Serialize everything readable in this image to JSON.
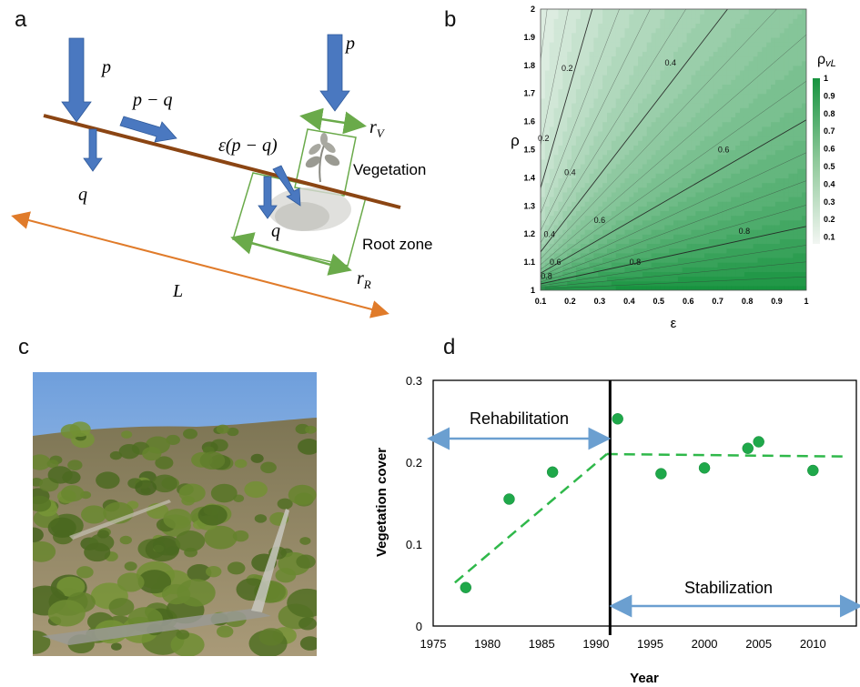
{
  "panels": {
    "a": "a",
    "b": "b",
    "c": "c",
    "d": "d"
  },
  "diagram_a": {
    "labels": {
      "p_left": "p",
      "p_minus_q": "p − q",
      "p_right": "p",
      "q_left": "q",
      "eps_pq": "ε(p − q)",
      "r_v": "r",
      "r_v_sub": "V",
      "vegetation": "Vegetation",
      "q_mid": "q",
      "root_zone": "Root zone",
      "r_r": "r",
      "r_r_sub": "R",
      "L": "L"
    },
    "colors": {
      "arrow": "#4a78c0",
      "slope": "#8b4513",
      "zone": "#6aaa4a",
      "length": "#e07b2a"
    }
  },
  "chart_b": {
    "type": "contour",
    "xlabel": "ε",
    "ylabel": "ρ",
    "xlim": [
      0.1,
      1
    ],
    "ylim": [
      1,
      2
    ],
    "xticks": [
      "0.1",
      "0.2",
      "0.3",
      "0.4",
      "0.5",
      "0.6",
      "0.7",
      "0.8",
      "0.9",
      "1"
    ],
    "yticks": [
      "1",
      "1.1",
      "1.2",
      "1.3",
      "1.4",
      "1.5",
      "1.6",
      "1.7",
      "1.8",
      "1.9",
      "2"
    ],
    "colorbar_title": "ρ",
    "colorbar_title_sub": "vL",
    "colorbar_ticks": [
      "1",
      "0.9",
      "0.8",
      "0.7",
      "0.6",
      "0.5",
      "0.4",
      "0.3",
      "0.2",
      "0.1"
    ],
    "contour_labels": [
      {
        "text": "0.2",
        "e": 0.19,
        "r": 1.78
      },
      {
        "text": "0.4",
        "e": 0.54,
        "r": 1.8
      },
      {
        "text": "0.2",
        "e": 0.11,
        "r": 1.53
      },
      {
        "text": "0.4",
        "e": 0.2,
        "r": 1.41
      },
      {
        "text": "0.6",
        "e": 0.72,
        "r": 1.49
      },
      {
        "text": "0.4",
        "e": 0.13,
        "r": 1.19
      },
      {
        "text": "0.6",
        "e": 0.3,
        "r": 1.24
      },
      {
        "text": "0.6",
        "e": 0.15,
        "r": 1.09
      },
      {
        "text": "0.8",
        "e": 0.79,
        "r": 1.2
      },
      {
        "text": "0.8",
        "e": 0.42,
        "r": 1.09
      },
      {
        "text": "0.8",
        "e": 0.12,
        "r": 1.04
      }
    ],
    "colors": {
      "low": "#f2f6f2",
      "high": "#17933f"
    }
  },
  "chart_data": {
    "type": "scatter",
    "xlabel": "Year",
    "ylabel": "Vegetation cover",
    "xlim": [
      1975,
      2014
    ],
    "ylim": [
      0,
      0.3
    ],
    "xticks": [
      "1975",
      "1980",
      "1985",
      "1990",
      "1995",
      "2000",
      "2005",
      "2010"
    ],
    "yticks": [
      "0",
      "0.1",
      "0.2",
      "0.3"
    ],
    "points": [
      {
        "x": 1978,
        "y": 0.047
      },
      {
        "x": 1982,
        "y": 0.155
      },
      {
        "x": 1986,
        "y": 0.188
      },
      {
        "x": 1992,
        "y": 0.253
      },
      {
        "x": 1996,
        "y": 0.186
      },
      {
        "x": 2000,
        "y": 0.193
      },
      {
        "x": 2004,
        "y": 0.217
      },
      {
        "x": 2005,
        "y": 0.225
      },
      {
        "x": 2010,
        "y": 0.19
      }
    ],
    "trend_rehab": [
      {
        "x": 1977,
        "y": 0.053
      },
      {
        "x": 1991,
        "y": 0.21
      }
    ],
    "trend_stab": [
      {
        "x": 1991,
        "y": 0.21
      },
      {
        "x": 2013,
        "y": 0.207
      }
    ],
    "divider_year": 1991.3,
    "annotations": {
      "rehabilitation": "Rehabilitation",
      "stabilization": "Stabilization"
    },
    "colors": {
      "points": "#1fa84a",
      "trend": "#2fb84a",
      "arrow": "#6b9fd0",
      "divider": "#000000"
    }
  },
  "photo_c": {
    "colors": {
      "sky": "#7fa9dc",
      "ground": "#8a7a56",
      "shrub": "#4f6a2c"
    }
  }
}
